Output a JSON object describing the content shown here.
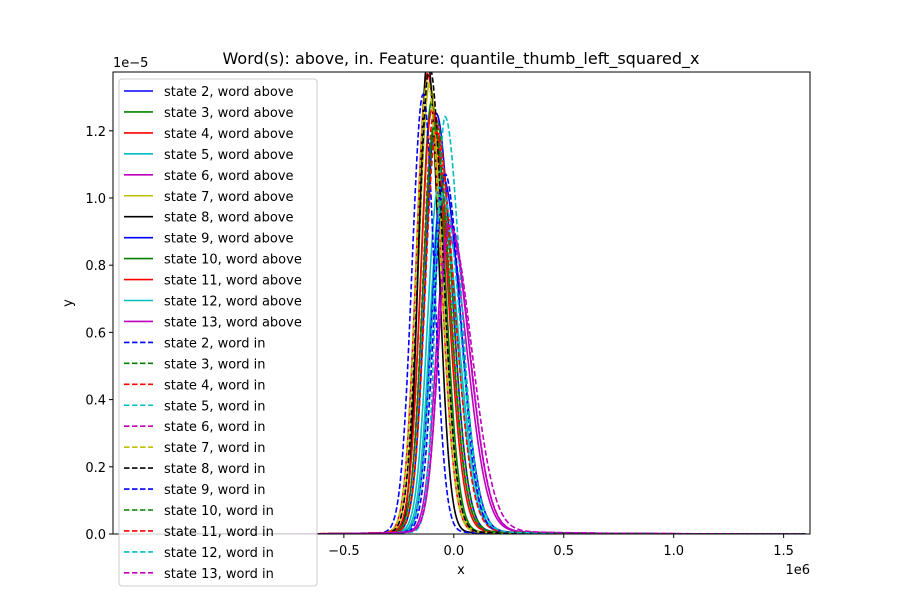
{
  "chart_data": {
    "type": "line",
    "title": "Word(s): above, in. Feature: quantile_thumb_left_squared_x",
    "xlabel": "x",
    "ylabel": "y",
    "x_offset_label": "1e6",
    "y_offset_label": "1e−5",
    "xlim": [
      -1.55,
      1.62
    ],
    "ylim": [
      0,
      1.375
    ],
    "x_scale_note": "x values in units of 1e6",
    "y_scale_note": "y values in units of 1e-5",
    "x_ticks": [
      -0.5,
      0.0,
      0.5,
      1.0,
      1.5
    ],
    "x_tick_labels": [
      "−0.5",
      "0.0",
      "0.5",
      "1.0",
      "1.5"
    ],
    "y_ticks": [
      0.0,
      0.2,
      0.4,
      0.6,
      0.8,
      1.0,
      1.2
    ],
    "y_tick_labels": [
      "0.0",
      "0.2",
      "0.4",
      "0.6",
      "0.8",
      "1.0",
      "1.2"
    ],
    "grid": false,
    "legend_position": "upper left",
    "series": [
      {
        "name": "state 2, word above",
        "color": "#0000ff",
        "dash": "solid",
        "mu": -0.08,
        "peak": 1.24,
        "sl": 0.05,
        "sr": 0.07,
        "tail": 0.012
      },
      {
        "name": "state 3, word above",
        "color": "#008000",
        "dash": "solid",
        "mu": -0.1,
        "peak": 1.28,
        "sl": 0.05,
        "sr": 0.06,
        "tail": 0.01
      },
      {
        "name": "state 4, word above",
        "color": "#ff0000",
        "dash": "solid",
        "mu": -0.12,
        "peak": 1.36,
        "sl": 0.05,
        "sr": 0.06,
        "tail": 0.01
      },
      {
        "name": "state 5, word above",
        "color": "#00bfbf",
        "dash": "solid",
        "mu": -0.06,
        "peak": 0.98,
        "sl": 0.05,
        "sr": 0.08,
        "tail": 0.012
      },
      {
        "name": "state 6, word above",
        "color": "#bf00bf",
        "dash": "solid",
        "mu": -0.03,
        "peak": 0.88,
        "sl": 0.05,
        "sr": 0.09,
        "tail": 0.016
      },
      {
        "name": "state 7, word above",
        "color": "#bfbf00",
        "dash": "solid",
        "mu": -0.11,
        "peak": 1.33,
        "sl": 0.05,
        "sr": 0.06,
        "tail": 0.01
      },
      {
        "name": "state 8, word above",
        "color": "#000000",
        "dash": "solid",
        "mu": -0.12,
        "peak": 1.4,
        "sl": 0.04,
        "sr": 0.05,
        "tail": 0.008
      },
      {
        "name": "state 9, word above",
        "color": "#0000ff",
        "dash": "solid",
        "mu": -0.05,
        "peak": 1.05,
        "sl": 0.05,
        "sr": 0.08,
        "tail": 0.012
      },
      {
        "name": "state 10, word above",
        "color": "#008000",
        "dash": "solid",
        "mu": -0.09,
        "peak": 1.2,
        "sl": 0.05,
        "sr": 0.07,
        "tail": 0.012
      },
      {
        "name": "state 11, word above",
        "color": "#ff0000",
        "dash": "solid",
        "mu": -0.1,
        "peak": 1.25,
        "sl": 0.05,
        "sr": 0.07,
        "tail": 0.012
      },
      {
        "name": "state 12, word above",
        "color": "#00bfbf",
        "dash": "solid",
        "mu": -0.07,
        "peak": 1.02,
        "sl": 0.05,
        "sr": 0.08,
        "tail": 0.012
      },
      {
        "name": "state 13, word above",
        "color": "#bf00bf",
        "dash": "solid",
        "mu": -0.02,
        "peak": 0.9,
        "sl": 0.05,
        "sr": 0.09,
        "tail": 0.015
      },
      {
        "name": "state 2, word in",
        "color": "#0000ff",
        "dash": "dashed",
        "mu": -0.14,
        "peak": 1.3,
        "sl": 0.05,
        "sr": 0.05,
        "tail": 0.008
      },
      {
        "name": "state 3, word in",
        "color": "#008000",
        "dash": "dashed",
        "mu": -0.08,
        "peak": 1.22,
        "sl": 0.05,
        "sr": 0.07,
        "tail": 0.012
      },
      {
        "name": "state 4, word in",
        "color": "#ff0000",
        "dash": "dashed",
        "mu": -0.09,
        "peak": 1.24,
        "sl": 0.05,
        "sr": 0.07,
        "tail": 0.013
      },
      {
        "name": "state 5, word in",
        "color": "#00bfbf",
        "dash": "dashed",
        "mu": -0.04,
        "peak": 1.23,
        "sl": 0.04,
        "sr": 0.07,
        "tail": 0.012
      },
      {
        "name": "state 6, word in",
        "color": "#bf00bf",
        "dash": "dashed",
        "mu": -0.02,
        "peak": 0.92,
        "sl": 0.05,
        "sr": 0.09,
        "tail": 0.015
      },
      {
        "name": "state 7, word in",
        "color": "#bfbf00",
        "dash": "dashed",
        "mu": -0.12,
        "peak": 1.34,
        "sl": 0.05,
        "sr": 0.06,
        "tail": 0.01
      },
      {
        "name": "state 8, word in",
        "color": "#000000",
        "dash": "dashed",
        "mu": -0.11,
        "peak": 1.38,
        "sl": 0.05,
        "sr": 0.06,
        "tail": 0.01
      },
      {
        "name": "state 9, word in",
        "color": "#0000ff",
        "dash": "dashed",
        "mu": -0.04,
        "peak": 1.06,
        "sl": 0.05,
        "sr": 0.07,
        "tail": 0.012
      },
      {
        "name": "state 10, word in",
        "color": "#008000",
        "dash": "dashed",
        "mu": -0.09,
        "peak": 1.2,
        "sl": 0.05,
        "sr": 0.07,
        "tail": 0.014
      },
      {
        "name": "state 11, word in",
        "color": "#ff0000",
        "dash": "dashed",
        "mu": -0.08,
        "peak": 1.18,
        "sl": 0.05,
        "sr": 0.08,
        "tail": 0.016
      },
      {
        "name": "state 12, word in",
        "color": "#00bfbf",
        "dash": "dashed",
        "mu": -0.05,
        "peak": 1.0,
        "sl": 0.05,
        "sr": 0.08,
        "tail": 0.012
      },
      {
        "name": "state 13, word in",
        "color": "#bf00bf",
        "dash": "dashed",
        "mu": -0.02,
        "peak": 0.9,
        "sl": 0.05,
        "sr": 0.1,
        "tail": 0.018
      }
    ]
  }
}
